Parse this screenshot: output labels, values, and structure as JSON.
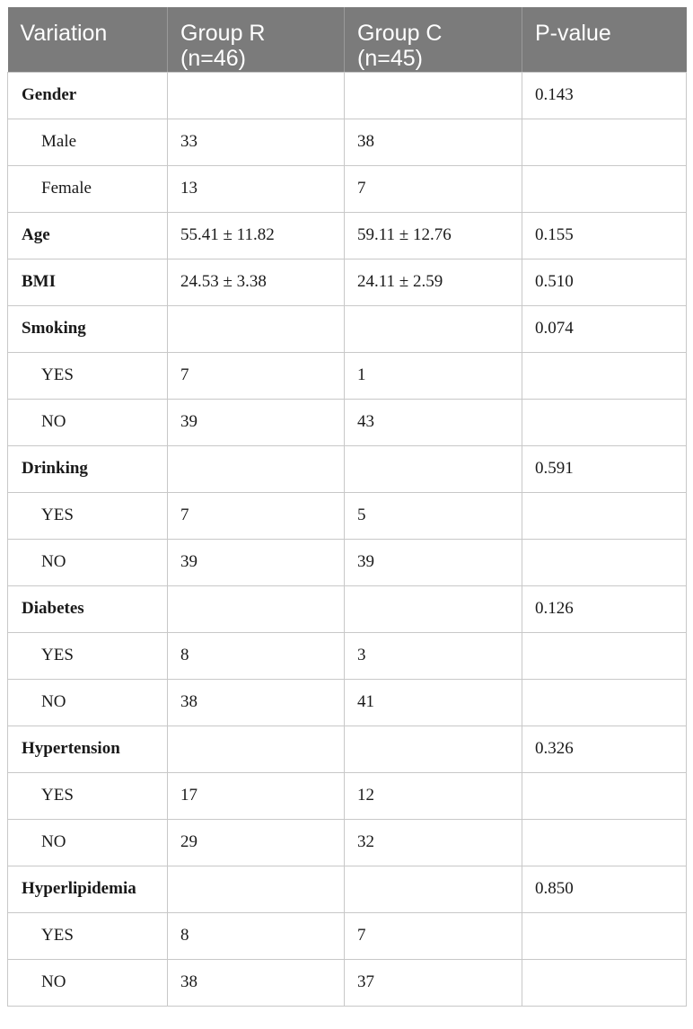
{
  "table": {
    "headers": [
      "Variation",
      "Group R\n(n=46)",
      "Group C\n(n=45)",
      "P-value"
    ],
    "rows": [
      {
        "kind": "group",
        "cells": [
          "Gender",
          "",
          "",
          "0.143"
        ]
      },
      {
        "kind": "sub",
        "cells": [
          "Male",
          "33",
          "38",
          ""
        ]
      },
      {
        "kind": "sub",
        "cells": [
          "Female",
          "13",
          "7",
          ""
        ]
      },
      {
        "kind": "group",
        "cells": [
          "Age",
          "55.41 ± 11.82",
          "59.11 ± 12.76",
          "0.155"
        ]
      },
      {
        "kind": "group",
        "cells": [
          "BMI",
          "24.53 ± 3.38",
          "24.11 ± 2.59",
          "0.510"
        ]
      },
      {
        "kind": "group",
        "cells": [
          "Smoking",
          "",
          "",
          "0.074"
        ]
      },
      {
        "kind": "sub",
        "cells": [
          "YES",
          "7",
          "1",
          ""
        ]
      },
      {
        "kind": "sub",
        "cells": [
          "NO",
          "39",
          "43",
          ""
        ]
      },
      {
        "kind": "group",
        "cells": [
          "Drinking",
          "",
          "",
          "0.591"
        ]
      },
      {
        "kind": "sub",
        "cells": [
          "YES",
          "7",
          "5",
          ""
        ]
      },
      {
        "kind": "sub",
        "cells": [
          "NO",
          "39",
          "39",
          ""
        ]
      },
      {
        "kind": "group",
        "cells": [
          "Diabetes",
          "",
          "",
          "0.126"
        ]
      },
      {
        "kind": "sub",
        "cells": [
          "YES",
          "8",
          "3",
          ""
        ]
      },
      {
        "kind": "sub",
        "cells": [
          "NO",
          "38",
          "41",
          ""
        ]
      },
      {
        "kind": "group",
        "cells": [
          "Hypertension",
          "",
          "",
          "0.326"
        ]
      },
      {
        "kind": "sub",
        "cells": [
          "YES",
          "17",
          "12",
          ""
        ]
      },
      {
        "kind": "sub",
        "cells": [
          "NO",
          "29",
          "32",
          ""
        ]
      },
      {
        "kind": "group",
        "cells": [
          "Hyperlipidemia",
          "",
          "",
          "0.850"
        ]
      },
      {
        "kind": "sub",
        "cells": [
          "YES",
          "8",
          "7",
          ""
        ]
      },
      {
        "kind": "sub",
        "cells": [
          "NO",
          "38",
          "37",
          ""
        ]
      }
    ]
  }
}
